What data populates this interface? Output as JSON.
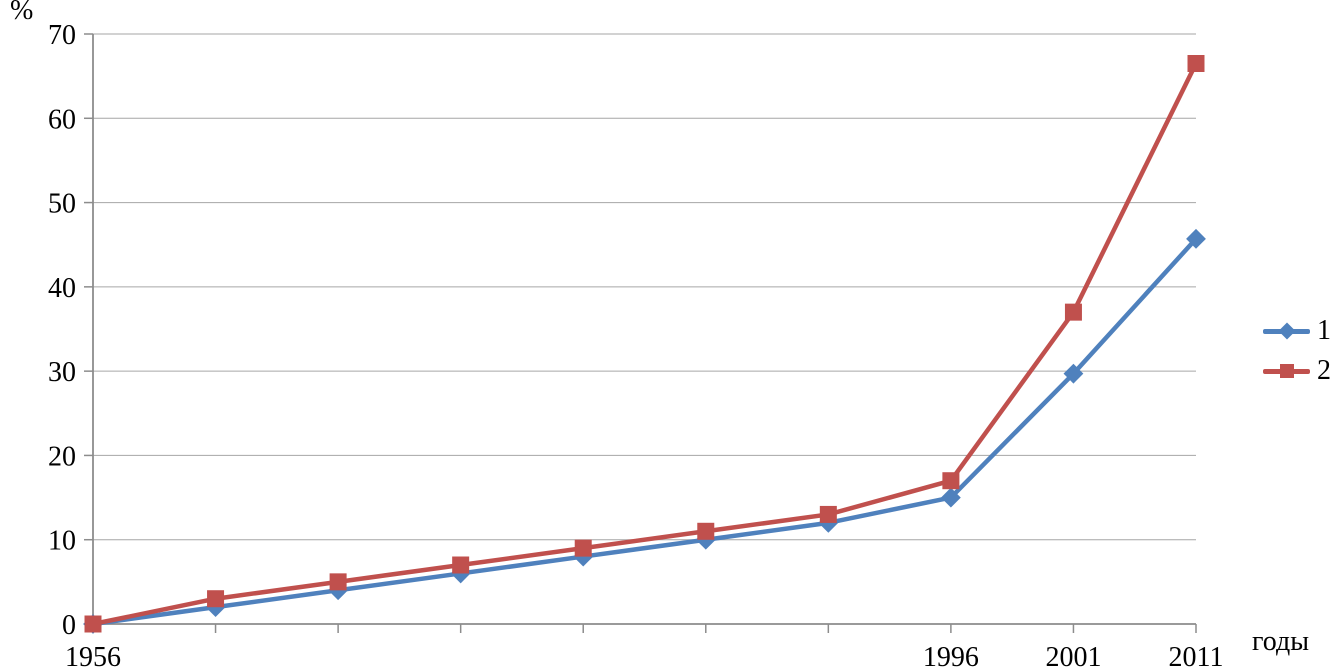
{
  "chart_data": {
    "type": "line",
    "title": "",
    "xlabel": "годы",
    "ylabel": "%",
    "categories": [
      "1956",
      "",
      "",
      "",
      "",
      "",
      "",
      "1996",
      "2001",
      "2011"
    ],
    "series": [
      {
        "name": "1",
        "marker": "diamond",
        "color": "#4F81BD",
        "values": [
          0,
          2,
          4,
          6,
          8,
          10,
          12,
          15,
          29.7,
          45.7
        ]
      },
      {
        "name": "2",
        "marker": "square",
        "color": "#C0504D",
        "values": [
          0,
          3,
          5,
          7,
          9,
          11,
          13,
          17,
          37,
          66.5
        ]
      }
    ],
    "ylim": [
      0,
      70
    ],
    "ytick_step": 10,
    "yticks": [
      0,
      10,
      20,
      30,
      40,
      50,
      60,
      70
    ],
    "grid": true,
    "legend_position": "right",
    "grid_color": "#A6A6A6",
    "axis_color": "#8C8C8C",
    "text_color": "#000000"
  }
}
